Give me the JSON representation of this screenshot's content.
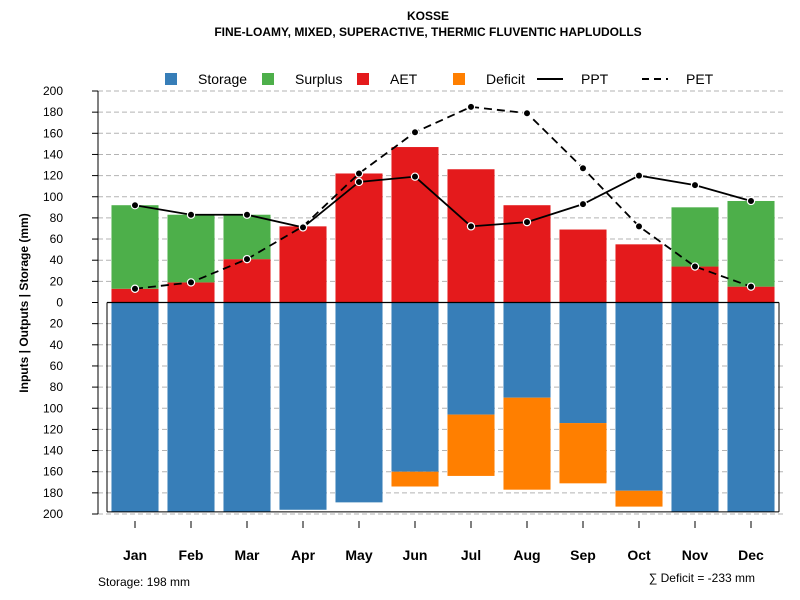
{
  "chart_data": {
    "type": "bar",
    "title": "KOSSE",
    "subtitle": "FINE-LOAMY, MIXED, SUPERACTIVE, THERMIC FLUVENTIC HAPLUDOLLS",
    "ylabel": "Inputs | Outputs | Storage     (mm)",
    "ylim": [
      -200,
      200
    ],
    "yticks": [
      200,
      180,
      160,
      140,
      120,
      100,
      80,
      60,
      40,
      20,
      0,
      20,
      40,
      60,
      80,
      100,
      120,
      140,
      160,
      180,
      200
    ],
    "categories": [
      "Jan",
      "Feb",
      "Mar",
      "Apr",
      "May",
      "Jun",
      "Jul",
      "Aug",
      "Sep",
      "Oct",
      "Nov",
      "Dec"
    ],
    "legend": {
      "position": "top",
      "entries": [
        {
          "label": "Storage",
          "color": "#377eb8",
          "kind": "box"
        },
        {
          "label": "Surplus",
          "color": "#4daf4a",
          "kind": "box"
        },
        {
          "label": "AET",
          "color": "#e41a1c",
          "kind": "box"
        },
        {
          "label": "Deficit",
          "color": "#ff7f00",
          "kind": "box"
        },
        {
          "label": "PPT",
          "color": "#000000",
          "kind": "solid"
        },
        {
          "label": "PET",
          "color": "#000000",
          "kind": "dashed"
        }
      ]
    },
    "series": [
      {
        "name": "AET",
        "color": "#e41a1c",
        "values": [
          13,
          19,
          41,
          72,
          122,
          147,
          126,
          92,
          69,
          55,
          34,
          15
        ]
      },
      {
        "name": "Surplus",
        "color": "#4daf4a",
        "values": [
          79,
          64,
          42,
          0,
          0,
          0,
          0,
          0,
          0,
          0,
          56,
          81
        ]
      },
      {
        "name": "Storage",
        "color": "#377eb8",
        "values": [
          198,
          198,
          198,
          196,
          189,
          160,
          106,
          90,
          114,
          178,
          198,
          198
        ]
      },
      {
        "name": "Deficit",
        "color": "#ff7f00",
        "values": [
          0,
          0,
          0,
          0,
          0,
          14,
          58,
          87,
          57,
          15,
          0,
          0
        ]
      },
      {
        "name": "PPT",
        "color": "#000000",
        "values": [
          92,
          83,
          83,
          71,
          114,
          119,
          72,
          76,
          93,
          120,
          111,
          96
        ]
      },
      {
        "name": "PET",
        "color": "#000000",
        "values": [
          13,
          19,
          41,
          72,
          122,
          161,
          185,
          179,
          127,
          72,
          34,
          15
        ]
      }
    ],
    "storage_note": "Storage: 198 mm",
    "deficit_note": "∑ Deficit = -233 mm"
  }
}
